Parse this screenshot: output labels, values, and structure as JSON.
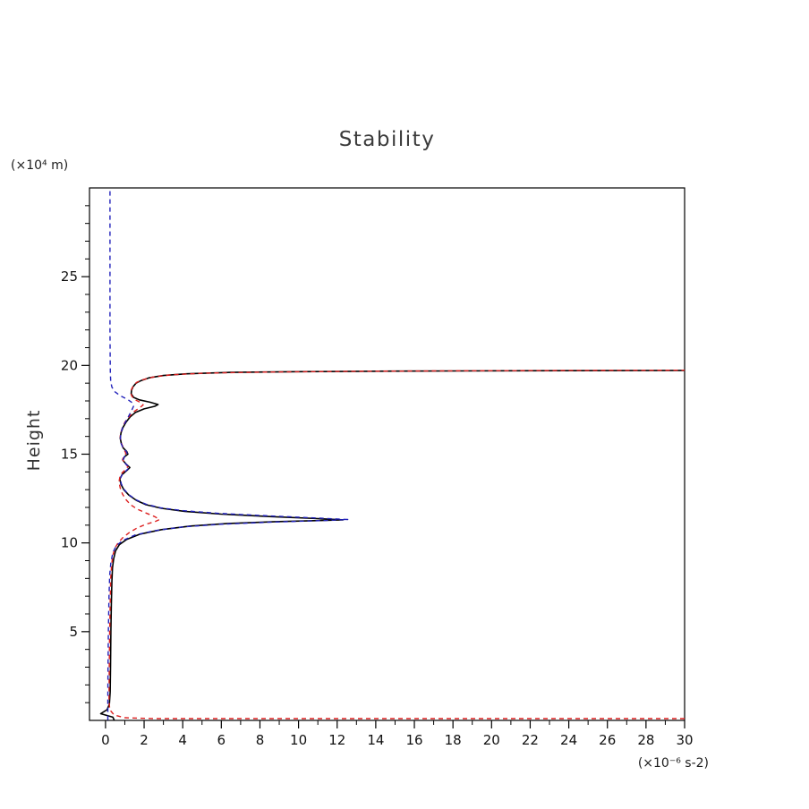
{
  "chart_data": {
    "type": "line",
    "title": "Stability",
    "ylabel": "Height",
    "ylabel_unit": "(×10⁴ m)",
    "xlabel_unit": "(×10⁻⁶ s-2)",
    "xlim": [
      -0.83,
      30
    ],
    "ylim": [
      0,
      30
    ],
    "grid": false,
    "legend": null,
    "x_major_ticks": [
      0,
      2,
      4,
      6,
      8,
      10,
      12,
      14,
      16,
      18,
      20,
      22,
      24,
      26,
      28,
      30
    ],
    "x_minor_ticks": [
      1,
      3,
      5,
      7,
      9,
      11,
      13,
      15,
      17,
      19,
      21,
      23,
      25,
      27,
      29
    ],
    "y_major_ticks": [
      5,
      10,
      15,
      20,
      25
    ],
    "y_minor_ticks": [
      1,
      2,
      3,
      4,
      6,
      7,
      8,
      9,
      11,
      12,
      13,
      14,
      16,
      17,
      18,
      19,
      21,
      22,
      23,
      24,
      26,
      27,
      28,
      29
    ],
    "axis_color": "#000000",
    "series": [
      {
        "name": "solid-black",
        "style": "solid",
        "color": "#000000",
        "width": 1.6,
        "dash": null,
        "points": [
          [
            0.45,
            0.02
          ],
          [
            0.38,
            0.18
          ],
          [
            -0.25,
            0.38
          ],
          [
            0.08,
            0.6
          ],
          [
            0.2,
            0.9
          ],
          [
            0.24,
            1.6
          ],
          [
            0.26,
            3.0
          ],
          [
            0.28,
            5.0
          ],
          [
            0.3,
            6.5
          ],
          [
            0.33,
            7.8
          ],
          [
            0.36,
            8.6
          ],
          [
            0.42,
            9.1
          ],
          [
            0.52,
            9.55
          ],
          [
            0.72,
            9.9
          ],
          [
            1.1,
            10.2
          ],
          [
            1.8,
            10.5
          ],
          [
            2.9,
            10.75
          ],
          [
            4.4,
            10.95
          ],
          [
            6.4,
            11.1
          ],
          [
            8.8,
            11.2
          ],
          [
            11.0,
            11.26
          ],
          [
            12.3,
            11.3
          ],
          [
            11.0,
            11.37
          ],
          [
            8.6,
            11.48
          ],
          [
            6.0,
            11.62
          ],
          [
            4.1,
            11.78
          ],
          [
            2.9,
            11.95
          ],
          [
            2.1,
            12.15
          ],
          [
            1.6,
            12.4
          ],
          [
            1.2,
            12.7
          ],
          [
            0.95,
            13.0
          ],
          [
            0.8,
            13.3
          ],
          [
            0.74,
            13.6
          ],
          [
            0.86,
            13.85
          ],
          [
            1.12,
            14.1
          ],
          [
            1.26,
            14.25
          ],
          [
            1.06,
            14.45
          ],
          [
            0.9,
            14.65
          ],
          [
            0.98,
            14.85
          ],
          [
            1.16,
            15.0
          ],
          [
            1.1,
            15.15
          ],
          [
            0.92,
            15.35
          ],
          [
            0.82,
            15.6
          ],
          [
            0.76,
            15.9
          ],
          [
            0.8,
            16.2
          ],
          [
            0.9,
            16.5
          ],
          [
            1.06,
            16.8
          ],
          [
            1.28,
            17.1
          ],
          [
            1.55,
            17.35
          ],
          [
            2.0,
            17.55
          ],
          [
            2.55,
            17.7
          ],
          [
            2.72,
            17.8
          ],
          [
            2.3,
            17.93
          ],
          [
            1.75,
            18.06
          ],
          [
            1.45,
            18.2
          ],
          [
            1.33,
            18.4
          ],
          [
            1.35,
            18.6
          ],
          [
            1.43,
            18.8
          ],
          [
            1.58,
            19.0
          ],
          [
            1.85,
            19.15
          ],
          [
            2.25,
            19.3
          ],
          [
            3.0,
            19.43
          ],
          [
            4.2,
            19.53
          ],
          [
            6.5,
            19.61
          ],
          [
            10,
            19.65
          ],
          [
            15,
            19.68
          ],
          [
            21,
            19.7
          ],
          [
            27,
            19.71
          ],
          [
            30,
            19.72
          ]
        ]
      },
      {
        "name": "dashed-red",
        "style": "dashed",
        "color": "#dd2020",
        "width": 1.4,
        "dash": [
          5,
          4
        ],
        "points": [
          [
            30,
            0.1
          ],
          [
            22,
            0.1
          ],
          [
            14,
            0.1
          ],
          [
            7,
            0.1
          ],
          [
            2.5,
            0.1
          ],
          [
            1.0,
            0.15
          ],
          [
            0.45,
            0.3
          ],
          [
            0.22,
            0.6
          ],
          [
            0.18,
            1.2
          ],
          [
            0.19,
            2.5
          ],
          [
            0.21,
            4.5
          ],
          [
            0.24,
            6.5
          ],
          [
            0.27,
            8.0
          ],
          [
            0.32,
            8.8
          ],
          [
            0.38,
            9.3
          ],
          [
            0.48,
            9.7
          ],
          [
            0.65,
            10.0
          ],
          [
            0.9,
            10.3
          ],
          [
            1.25,
            10.6
          ],
          [
            1.65,
            10.85
          ],
          [
            2.1,
            11.05
          ],
          [
            2.6,
            11.22
          ],
          [
            2.8,
            11.32
          ],
          [
            2.55,
            11.48
          ],
          [
            2.1,
            11.68
          ],
          [
            1.65,
            11.9
          ],
          [
            1.3,
            12.15
          ],
          [
            1.05,
            12.45
          ],
          [
            0.88,
            12.75
          ],
          [
            0.76,
            13.1
          ],
          [
            0.7,
            13.45
          ],
          [
            0.74,
            13.7
          ],
          [
            0.86,
            13.95
          ],
          [
            1.06,
            14.15
          ],
          [
            1.16,
            14.3
          ],
          [
            1.0,
            14.5
          ],
          [
            0.88,
            14.7
          ],
          [
            0.96,
            14.9
          ],
          [
            1.06,
            15.05
          ],
          [
            0.96,
            15.25
          ],
          [
            0.86,
            15.5
          ],
          [
            0.78,
            15.8
          ],
          [
            0.76,
            16.1
          ],
          [
            0.86,
            16.45
          ],
          [
            1.0,
            16.8
          ],
          [
            1.22,
            17.1
          ],
          [
            1.48,
            17.4
          ],
          [
            1.78,
            17.62
          ],
          [
            1.95,
            17.78
          ],
          [
            1.78,
            17.93
          ],
          [
            1.5,
            18.08
          ],
          [
            1.36,
            18.28
          ],
          [
            1.3,
            18.48
          ],
          [
            1.36,
            18.68
          ],
          [
            1.46,
            18.88
          ],
          [
            1.62,
            19.05
          ],
          [
            1.95,
            19.2
          ],
          [
            2.5,
            19.35
          ],
          [
            3.4,
            19.47
          ],
          [
            5.2,
            19.57
          ],
          [
            8.5,
            19.63
          ],
          [
            13,
            19.67
          ],
          [
            19,
            19.7
          ],
          [
            25,
            19.72
          ],
          [
            30,
            19.73
          ]
        ]
      },
      {
        "name": "dashed-blue",
        "style": "dashed",
        "color": "#2222bb",
        "width": 1.4,
        "dash": [
          5,
          4
        ],
        "points": [
          [
            0.12,
            0.02
          ],
          [
            0.12,
            1.2
          ],
          [
            0.13,
            3.0
          ],
          [
            0.15,
            5.0
          ],
          [
            0.18,
            7.0
          ],
          [
            0.22,
            8.2
          ],
          [
            0.28,
            8.9
          ],
          [
            0.38,
            9.45
          ],
          [
            0.56,
            9.85
          ],
          [
            0.92,
            10.15
          ],
          [
            1.55,
            10.45
          ],
          [
            2.6,
            10.7
          ],
          [
            4.0,
            10.9
          ],
          [
            6.0,
            11.05
          ],
          [
            8.5,
            11.17
          ],
          [
            11.2,
            11.26
          ],
          [
            12.55,
            11.32
          ],
          [
            11.0,
            11.4
          ],
          [
            8.5,
            11.52
          ],
          [
            5.9,
            11.66
          ],
          [
            4.0,
            11.82
          ],
          [
            2.85,
            11.98
          ],
          [
            2.1,
            12.18
          ],
          [
            1.6,
            12.42
          ],
          [
            1.2,
            12.72
          ],
          [
            0.96,
            13.02
          ],
          [
            0.82,
            13.32
          ],
          [
            0.76,
            13.62
          ],
          [
            0.88,
            13.88
          ],
          [
            1.1,
            14.1
          ],
          [
            1.24,
            14.26
          ],
          [
            1.04,
            14.46
          ],
          [
            0.9,
            14.66
          ],
          [
            0.98,
            14.86
          ],
          [
            1.14,
            15.0
          ],
          [
            1.07,
            15.16
          ],
          [
            0.9,
            15.38
          ],
          [
            0.8,
            15.62
          ],
          [
            0.77,
            15.92
          ],
          [
            0.8,
            16.22
          ],
          [
            0.9,
            16.55
          ],
          [
            1.05,
            16.85
          ],
          [
            1.2,
            17.15
          ],
          [
            1.35,
            17.45
          ],
          [
            1.45,
            17.7
          ],
          [
            1.38,
            17.9
          ],
          [
            1.12,
            18.1
          ],
          [
            0.75,
            18.3
          ],
          [
            0.48,
            18.52
          ],
          [
            0.33,
            18.78
          ],
          [
            0.27,
            19.1
          ],
          [
            0.25,
            19.6
          ],
          [
            0.24,
            20.5
          ],
          [
            0.23,
            22.0
          ],
          [
            0.23,
            24.0
          ],
          [
            0.23,
            26.5
          ],
          [
            0.23,
            30.0
          ]
        ]
      }
    ]
  }
}
